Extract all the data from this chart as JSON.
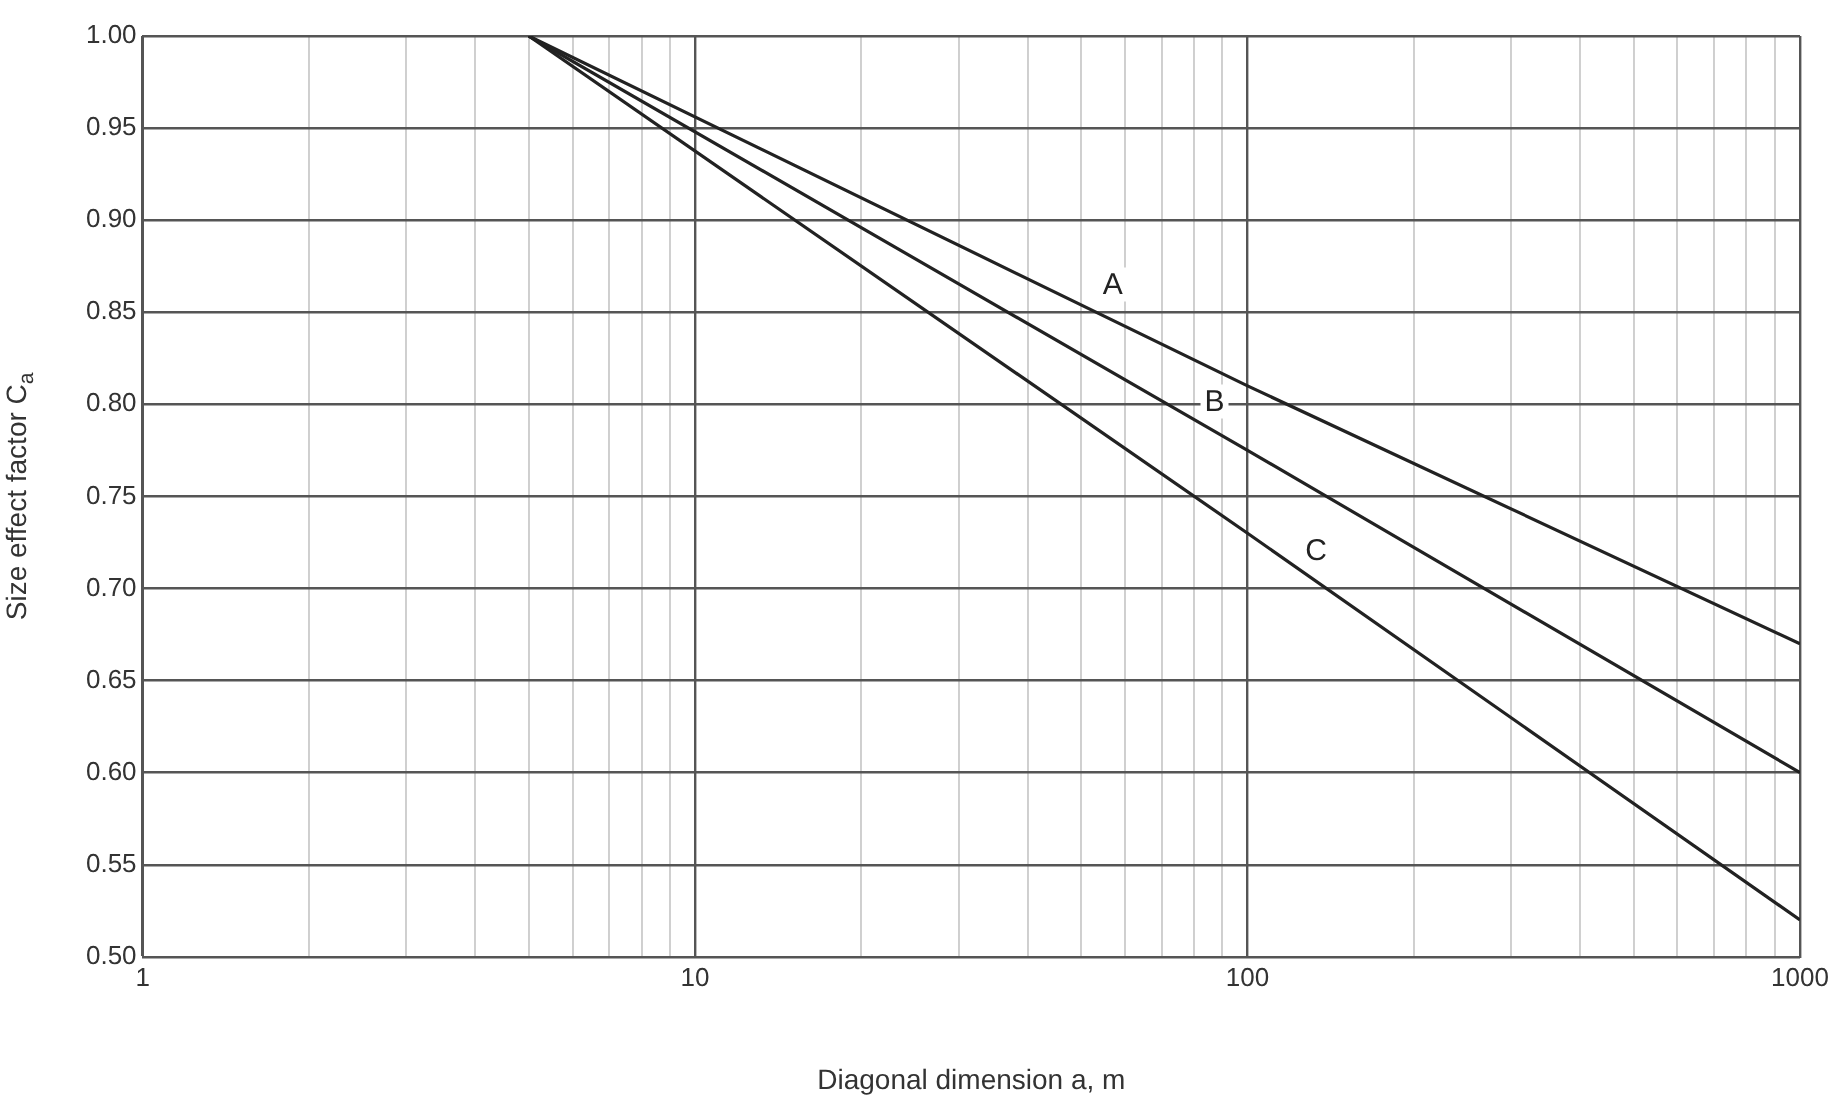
{
  "chart_data": {
    "type": "line",
    "xlabel": "Diagonal dimension a, m",
    "ylabel": "Size effect factor C$_{a}$",
    "log": "x",
    "grid": true,
    "legend": false,
    "marker": "none",
    "line_style": "solid",
    "xlim": [
      1,
      1000
    ],
    "xticks": [
      1,
      {
        "value": 2,
        "label": null
      },
      {
        "value": 3,
        "label": null
      },
      {
        "value": 4,
        "label": null
      },
      {
        "value": 5,
        "label": null
      },
      {
        "value": 6,
        "label": null
      },
      {
        "value": 7,
        "label": null
      },
      {
        "value": 8,
        "label": null
      },
      {
        "value": 9,
        "label": null
      },
      10,
      {
        "value": 20,
        "label": null
      },
      {
        "value": 30,
        "label": null
      },
      {
        "value": 40,
        "label": null
      },
      {
        "value": 50,
        "label": null
      },
      {
        "value": 60,
        "label": null
      },
      {
        "value": 70,
        "label": null
      },
      {
        "value": 80,
        "label": null
      },
      {
        "value": 90,
        "label": null
      },
      100,
      {
        "value": 200,
        "label": null
      },
      {
        "value": 300,
        "label": null
      },
      {
        "value": 400,
        "label": null
      },
      {
        "value": 500,
        "label": null
      },
      {
        "value": 600,
        "label": null
      },
      {
        "value": 700,
        "label": null
      },
      {
        "value": 800,
        "label": null
      },
      {
        "value": 900,
        "label": null
      },
      1000
    ],
    "ylim": [
      0.5,
      1.0
    ],
    "yticks": [
      {
        "value": 0.5,
        "label": "0.50"
      },
      {
        "value": 0.55,
        "label": "0.55"
      },
      {
        "value": 0.6,
        "label": "0.60"
      },
      {
        "value": 0.65,
        "label": "0.65"
      },
      {
        "value": 0.7,
        "label": "0.70"
      },
      {
        "value": 0.75,
        "label": "0.75"
      },
      {
        "value": 0.8,
        "label": "0.80"
      },
      {
        "value": 0.85,
        "label": "0.85"
      },
      {
        "value": 0.9,
        "label": "0.90"
      },
      {
        "value": 0.95,
        "label": "0.95"
      },
      {
        "value": 1.0,
        "label": "1.00"
      }
    ],
    "series": [
      {
        "name": "A",
        "color": "#222222",
        "x": [
          5,
          100,
          1000
        ],
        "values": [
          1.0,
          0.81,
          0.67
        ]
      },
      {
        "name": "B",
        "color": "#222222",
        "x": [
          5,
          100,
          1000
        ],
        "values": [
          1.0,
          0.775,
          0.6
        ]
      },
      {
        "name": "C",
        "color": "#222222",
        "x": [
          5,
          100,
          1000
        ],
        "values": [
          1.0,
          0.73,
          0.52
        ]
      }
    ]
  }
}
